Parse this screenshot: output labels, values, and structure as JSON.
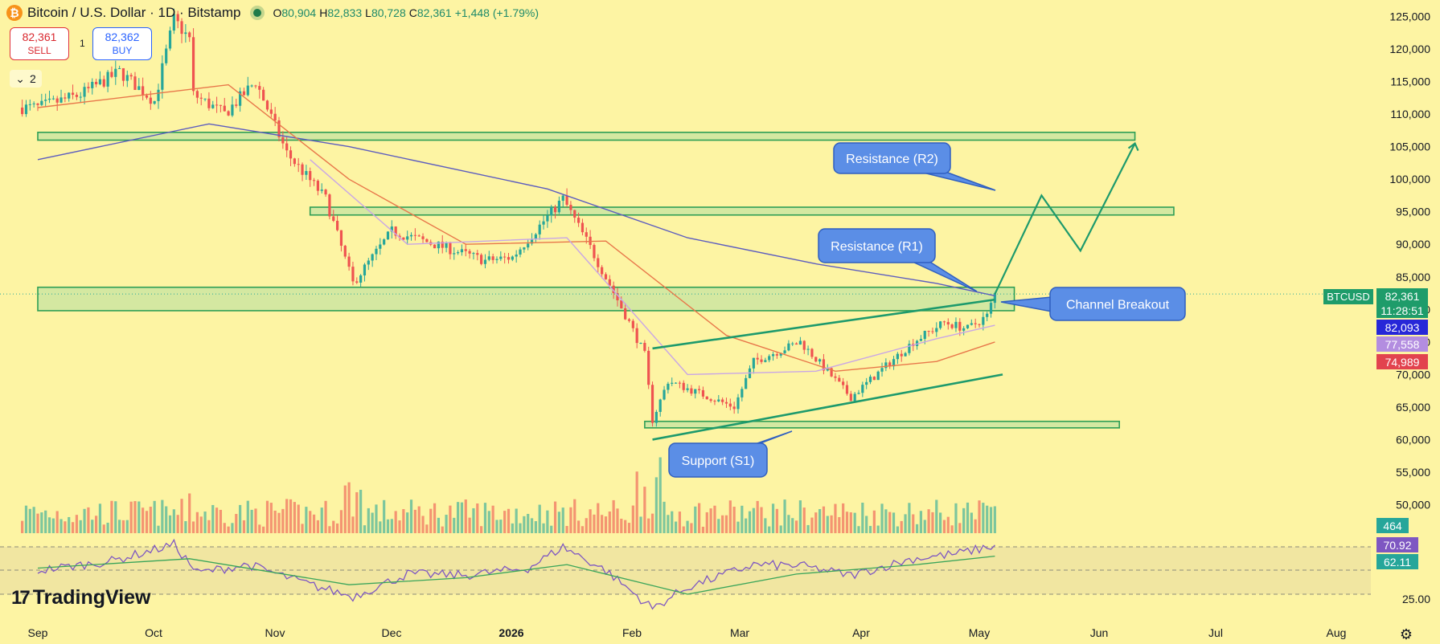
{
  "header": {
    "logo_glyph": "₿",
    "title": "Bitcoin / U.S. Dollar · 1D · Bitstamp",
    "ohlc": {
      "o_label": "O",
      "o": "80,904",
      "h_label": "H",
      "h": "82,833",
      "l_label": "L",
      "l": "80,728",
      "c_label": "C",
      "c": "82,361",
      "change": "+1,448 (+1.79%)"
    }
  },
  "trade": {
    "sell_price": "82,361",
    "sell_label": "SELL",
    "spread": "1",
    "buy_price": "82,362",
    "buy_label": "BUY"
  },
  "indicators_collapse": {
    "icon": "chevron-down-icon",
    "count": "2"
  },
  "brand": {
    "logo_mark": "17",
    "logo_text": "TradingView"
  },
  "colors": {
    "background": "#fdf4a3",
    "up": "#26a69a",
    "down": "#ef5350",
    "zone_fill": "#c6e4a0",
    "zone_border": "#2e9e55",
    "channel": "#1d9a6c",
    "callout": "#5b8ee6",
    "ma_slow": "#5c5cbf",
    "ma_mid": "#e8774a",
    "ma_fast": "#c9a6e6"
  },
  "chart_data": {
    "type": "candlestick",
    "symbol": "BTCUSD",
    "interval": "1D",
    "y_axis": {
      "ticks": [
        "125,000",
        "120,000",
        "115,000",
        "110,000",
        "105,000",
        "100,000",
        "95,000",
        "90,000",
        "85,000",
        "80,000",
        "75,000",
        "70,000",
        "65,000",
        "60,000",
        "55,000",
        "50,000"
      ],
      "ylim": [
        48500,
        126000
      ]
    },
    "x_axis": {
      "ticks": [
        "Sep",
        "Oct",
        "Nov",
        "Dec",
        "2026",
        "Feb",
        "Mar",
        "Apr",
        "May",
        "Jun",
        "Jul",
        "Aug"
      ]
    },
    "price_path": [
      {
        "date": "2025-09-01",
        "price": 111000
      },
      {
        "date": "2025-09-12",
        "price": 113000
      },
      {
        "date": "2025-09-22",
        "price": 116500
      },
      {
        "date": "2025-10-01",
        "price": 112000
      },
      {
        "date": "2025-10-06",
        "price": 124500
      },
      {
        "date": "2025-10-10",
        "price": 121500
      },
      {
        "date": "2025-10-11",
        "price": 113000
      },
      {
        "date": "2025-10-19",
        "price": 110000
      },
      {
        "date": "2025-10-27",
        "price": 115000
      },
      {
        "date": "2025-11-04",
        "price": 104000
      },
      {
        "date": "2025-11-14",
        "price": 97000
      },
      {
        "date": "2025-11-21",
        "price": 84000
      },
      {
        "date": "2025-12-01",
        "price": 92000
      },
      {
        "date": "2025-12-12",
        "price": 90000
      },
      {
        "date": "2025-12-25",
        "price": 87500
      },
      {
        "date": "2026-01-01",
        "price": 88000
      },
      {
        "date": "2026-01-14",
        "price": 97000
      },
      {
        "date": "2026-01-21",
        "price": 89500
      },
      {
        "date": "2026-01-31",
        "price": 78000
      },
      {
        "date": "2026-02-04",
        "price": 73000
      },
      {
        "date": "2026-02-06",
        "price": 63000
      },
      {
        "date": "2026-02-10",
        "price": 69000
      },
      {
        "date": "2026-02-27",
        "price": 65000
      },
      {
        "date": "2026-03-04",
        "price": 72000
      },
      {
        "date": "2026-03-16",
        "price": 75000
      },
      {
        "date": "2026-03-29",
        "price": 66500
      },
      {
        "date": "2026-04-14",
        "price": 75000
      },
      {
        "date": "2026-04-22",
        "price": 78000
      },
      {
        "date": "2026-04-28",
        "price": 77000
      },
      {
        "date": "2026-05-03",
        "price": 79000
      },
      {
        "date": "2026-05-05",
        "price": 82361
      }
    ],
    "moving_averages": [
      {
        "name": "MA slow",
        "color": "#5c5cbf",
        "points": [
          {
            "date": "2025-09-01",
            "price": 103000
          },
          {
            "date": "2025-10-15",
            "price": 108500
          },
          {
            "date": "2025-11-20",
            "price": 105000
          },
          {
            "date": "2026-01-10",
            "price": 98500
          },
          {
            "date": "2026-02-15",
            "price": 91000
          },
          {
            "date": "2026-03-20",
            "price": 87000
          },
          {
            "date": "2026-04-20",
            "price": 84000
          },
          {
            "date": "2026-05-05",
            "price": 82093
          }
        ]
      },
      {
        "name": "MA mid",
        "color": "#e8774a",
        "points": [
          {
            "date": "2025-09-01",
            "price": 111000
          },
          {
            "date": "2025-10-20",
            "price": 114500
          },
          {
            "date": "2025-11-20",
            "price": 100000
          },
          {
            "date": "2025-12-20",
            "price": 90000
          },
          {
            "date": "2026-01-25",
            "price": 90500
          },
          {
            "date": "2026-02-25",
            "price": 76000
          },
          {
            "date": "2026-03-25",
            "price": 70500
          },
          {
            "date": "2026-04-20",
            "price": 72000
          },
          {
            "date": "2026-05-05",
            "price": 74989
          }
        ]
      },
      {
        "name": "MA fast",
        "color": "#c9a6e6",
        "points": [
          {
            "date": "2025-11-10",
            "price": 103000
          },
          {
            "date": "2025-12-05",
            "price": 90000
          },
          {
            "date": "2026-01-15",
            "price": 91000
          },
          {
            "date": "2026-02-15",
            "price": 70000
          },
          {
            "date": "2026-03-20",
            "price": 70500
          },
          {
            "date": "2026-04-20",
            "price": 75500
          },
          {
            "date": "2026-05-05",
            "price": 77558
          }
        ]
      }
    ],
    "zones": [
      {
        "name": "zone-106k",
        "from_date": "2025-09-01",
        "to_date": "2026-06-10",
        "low": 106000,
        "high": 107200
      },
      {
        "name": "zone-95k",
        "from_date": "2025-11-10",
        "to_date": "2026-06-20",
        "low": 94500,
        "high": 95700
      },
      {
        "name": "zone-80k",
        "from_date": "2025-09-01",
        "to_date": "2026-05-10",
        "low": 79800,
        "high": 83400
      },
      {
        "name": "zone-62k",
        "from_date": "2026-02-04",
        "to_date": "2026-06-06",
        "low": 61800,
        "high": 62800
      }
    ],
    "channel_lines": [
      {
        "name": "channel-upper",
        "from": {
          "date": "2026-02-06",
          "price": 74000
        },
        "to": {
          "date": "2026-05-05",
          "price": 81500
        }
      },
      {
        "name": "channel-lower",
        "from": {
          "date": "2026-02-06",
          "price": 60000
        },
        "to": {
          "date": "2026-05-07",
          "price": 70000
        }
      }
    ],
    "projection": [
      {
        "date": "2026-05-05",
        "price": 82361
      },
      {
        "date": "2026-05-17",
        "price": 97500
      },
      {
        "date": "2026-05-27",
        "price": 89000
      },
      {
        "date": "2026-06-10",
        "price": 105500
      }
    ],
    "annotations": [
      {
        "text": "Resistance (R2)",
        "target": {
          "date": "2026-05-05",
          "price": 98500
        }
      },
      {
        "text": "Resistance (R1)",
        "target": {
          "date": "2026-05-04",
          "price": 83000
        }
      },
      {
        "text": "Channel Breakout",
        "target": {
          "date": "2026-05-06",
          "price": 82300
        }
      },
      {
        "text": "Support (S1)",
        "target": {
          "date": "2026-02-27",
          "price": 59500
        }
      }
    ],
    "price_labels": [
      {
        "text": "82,361",
        "color": "#1e9c6a"
      },
      {
        "text": "11:28:51",
        "color": "#1e9c6a"
      },
      {
        "text": "82,093",
        "color": "#2727d8"
      },
      {
        "text": "77,558",
        "color": "#b38de0"
      },
      {
        "text": "74,989",
        "color": "#e2434e"
      }
    ],
    "symbol_tag": {
      "text": "BTCUSD",
      "color": "#1e9c6a"
    },
    "volume_label": {
      "text": "464",
      "color": "#26a69a"
    },
    "rsi": {
      "labels": [
        {
          "text": "70.92",
          "color": "#7e57c2"
        },
        {
          "text": "62.11",
          "color": "#26a69a"
        }
      ],
      "axis_tick": "25.00",
      "path": [
        {
          "date": "2025-09-01",
          "v": 50
        },
        {
          "date": "2025-09-20",
          "v": 58
        },
        {
          "date": "2025-10-06",
          "v": 72
        },
        {
          "date": "2025-10-12",
          "v": 48
        },
        {
          "date": "2025-10-25",
          "v": 55
        },
        {
          "date": "2025-11-10",
          "v": 38
        },
        {
          "date": "2025-11-21",
          "v": 28
        },
        {
          "date": "2025-12-05",
          "v": 47
        },
        {
          "date": "2025-12-20",
          "v": 46
        },
        {
          "date": "2026-01-05",
          "v": 52
        },
        {
          "date": "2026-01-14",
          "v": 70
        },
        {
          "date": "2026-01-25",
          "v": 50
        },
        {
          "date": "2026-02-06",
          "v": 18
        },
        {
          "date": "2026-02-15",
          "v": 36
        },
        {
          "date": "2026-03-04",
          "v": 55
        },
        {
          "date": "2026-03-16",
          "v": 54
        },
        {
          "date": "2026-03-29",
          "v": 46
        },
        {
          "date": "2026-04-14",
          "v": 60
        },
        {
          "date": "2026-04-25",
          "v": 64
        },
        {
          "date": "2026-05-05",
          "v": 70.92
        }
      ],
      "ma_path": [
        {
          "date": "2025-09-01",
          "v": 52
        },
        {
          "date": "2025-10-10",
          "v": 60
        },
        {
          "date": "2025-11-20",
          "v": 38
        },
        {
          "date": "2025-12-20",
          "v": 44
        },
        {
          "date": "2026-01-15",
          "v": 55
        },
        {
          "date": "2026-02-15",
          "v": 30
        },
        {
          "date": "2026-03-15",
          "v": 47
        },
        {
          "date": "2026-04-15",
          "v": 55
        },
        {
          "date": "2026-05-05",
          "v": 62.11
        }
      ]
    }
  }
}
